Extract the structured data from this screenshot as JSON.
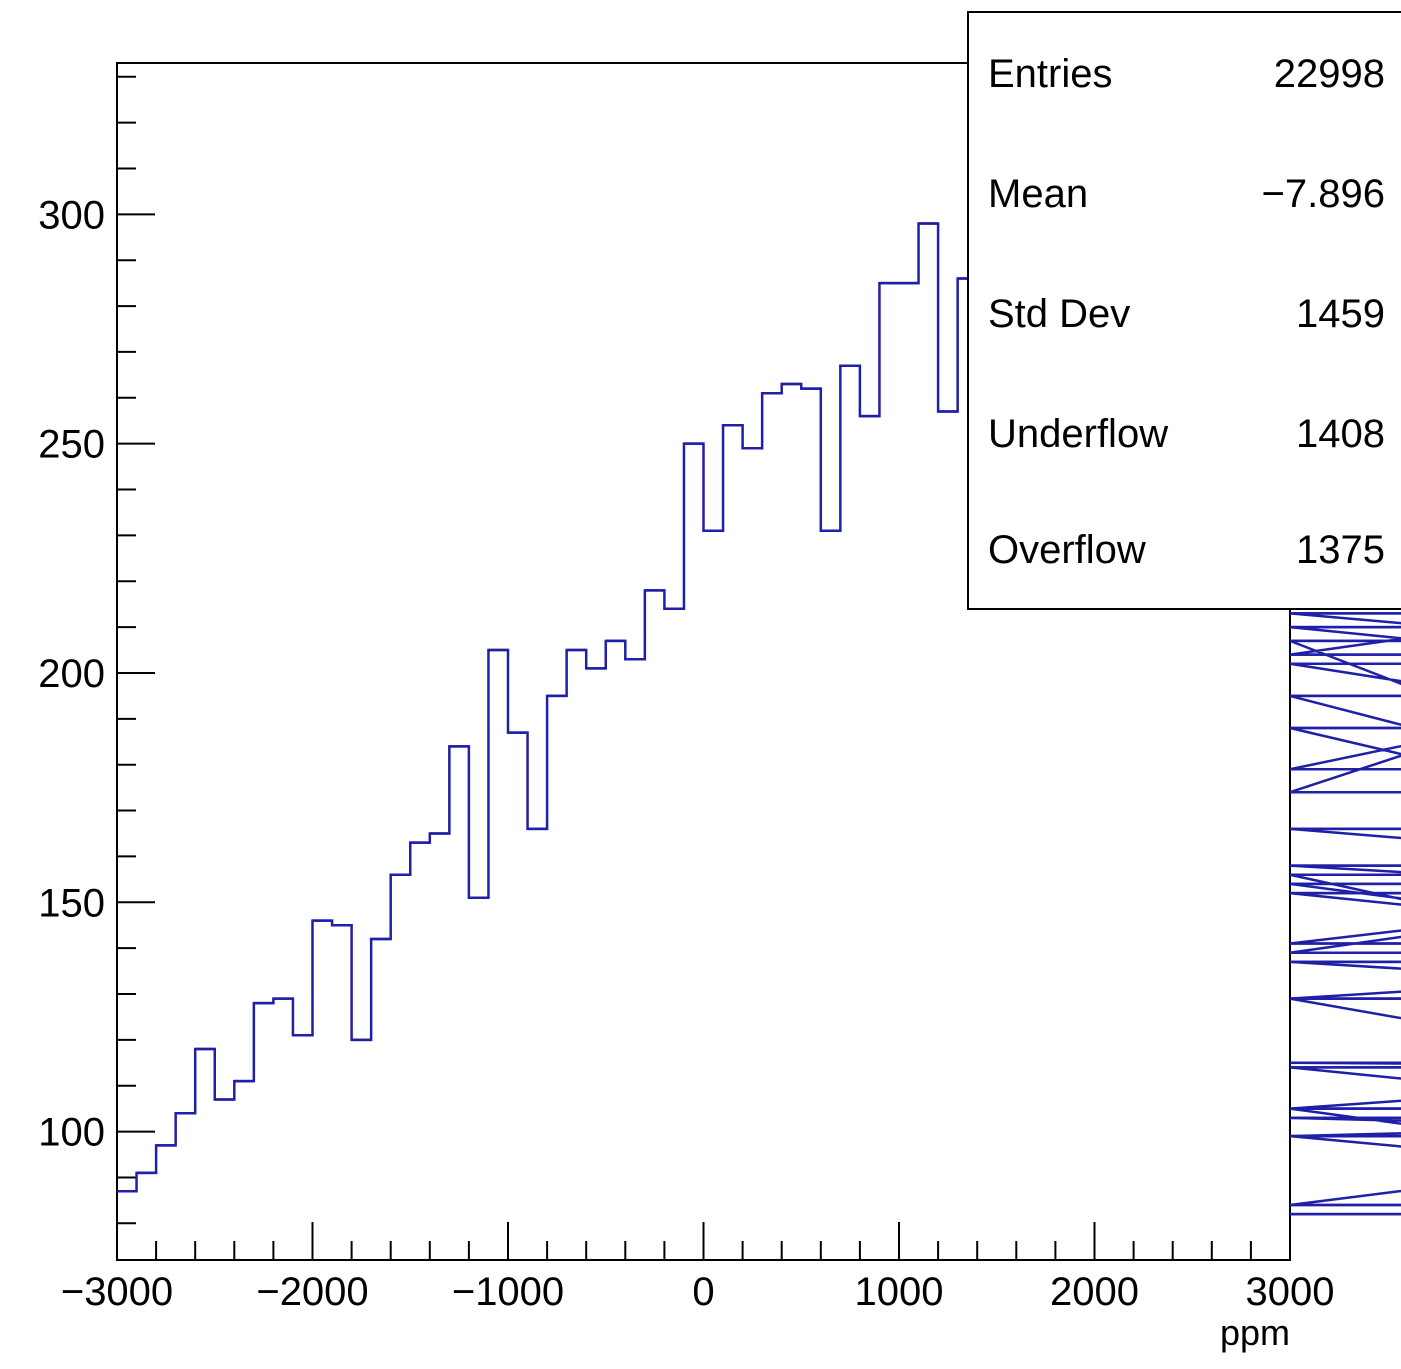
{
  "chart_data": {
    "type": "bar",
    "histogram": true,
    "title": "",
    "xlabel": "ppm",
    "ylabel": "",
    "xlim": [
      -3000,
      3000
    ],
    "ylim": [
      72,
      333
    ],
    "bin_width": 100,
    "x_ticks": [
      -3000,
      -2000,
      -1000,
      0,
      1000,
      2000,
      3000
    ],
    "x_tick_labels": [
      "−3000",
      "−2000",
      "−1000",
      "0",
      "1000",
      "2000",
      "3000"
    ],
    "y_ticks": [
      100,
      150,
      200,
      250,
      300
    ],
    "y_tick_labels": [
      "100",
      "150",
      "200",
      "250",
      "300"
    ],
    "line_color": "#1f1fa8",
    "grid": false,
    "series": [
      {
        "x_start": -3000,
        "values": [
          87,
          91,
          97,
          104,
          118,
          107,
          111,
          128,
          129,
          121,
          146,
          145,
          120,
          142,
          156,
          163,
          165,
          184,
          151,
          205,
          187,
          166,
          195,
          205,
          201,
          207,
          203,
          218,
          214,
          250,
          231,
          254,
          249,
          261,
          263,
          262,
          231,
          267,
          256,
          285,
          285,
          298,
          257,
          286,
          282,
          271,
          259,
          311,
          267,
          307,
          309,
          302,
          298,
          285,
          284,
          282,
          271,
          281,
          275,
          252,
          320,
          278,
          267,
          265,
          259,
          271,
          249,
          232,
          256,
          257,
          226,
          248,
          232,
          210,
          204,
          213,
          207,
          179,
          195,
          174,
          202,
          188,
          166,
          158,
          152,
          141,
          154,
          139,
          156,
          129,
          137,
          129,
          105,
          115,
          114,
          99,
          103,
          99,
          84,
          105,
          82
        ]
      }
    ]
  },
  "stats_box": {
    "rows": [
      {
        "label": "Entries",
        "value": "22998"
      },
      {
        "label": "Mean",
        "value": "−7.896"
      },
      {
        "label": "Std Dev",
        "value": "1459"
      },
      {
        "label": "Underflow",
        "value": "1408"
      },
      {
        "label": "Overflow",
        "value": "1375"
      }
    ]
  }
}
